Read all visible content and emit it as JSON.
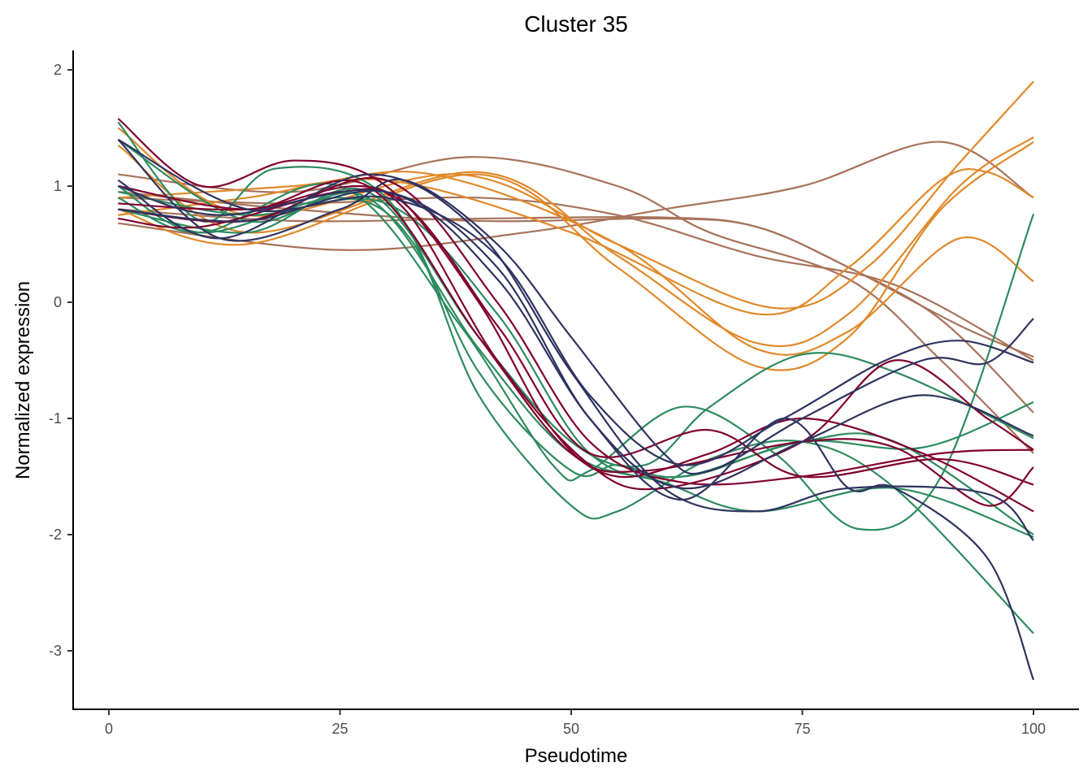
{
  "chart_data": {
    "type": "line",
    "title": "Cluster 35",
    "xlabel": "Pseudotime",
    "ylabel": "Normalized expression",
    "xlim": [
      -4,
      105
    ],
    "ylim": [
      -3.5,
      2.15
    ],
    "xticks": [
      0,
      25,
      50,
      75,
      100
    ],
    "xtick_labels": [
      "0",
      "25",
      "50",
      "75",
      "100"
    ],
    "yticks": [
      2,
      1,
      0,
      -1,
      -2,
      -3
    ],
    "ytick_labels": [
      "2",
      "1",
      "0",
      "-1",
      "-2",
      "-3"
    ],
    "grid": false,
    "legend": "none",
    "colors": {
      "orange": "#E0892A",
      "brown": "#A8725A",
      "green": "#2E8B5F",
      "red": "#80002E",
      "navy": "#2F3360"
    },
    "series": [
      {
        "group": "brown",
        "x": [
          1,
          25,
          45,
          60,
          75,
          90,
          100
        ],
        "y": [
          0.68,
          0.45,
          0.6,
          0.8,
          1.0,
          1.38,
          0.9
        ]
      },
      {
        "group": "brown",
        "x": [
          1,
          20,
          40,
          60,
          70,
          80,
          90,
          100
        ],
        "y": [
          0.8,
          0.7,
          0.72,
          0.73,
          0.65,
          0.3,
          -0.15,
          -0.95
        ]
      },
      {
        "group": "brown",
        "x": [
          1,
          20,
          39,
          55,
          65,
          80,
          90,
          100
        ],
        "y": [
          1.1,
          0.95,
          1.25,
          1.0,
          0.6,
          0.2,
          -0.5,
          -1.3
        ]
      },
      {
        "group": "brown",
        "x": [
          1,
          20,
          40,
          55,
          70,
          85,
          100
        ],
        "y": [
          0.9,
          0.85,
          0.9,
          0.75,
          0.4,
          0.15,
          -0.5
        ]
      },
      {
        "group": "brown",
        "x": [
          1,
          20,
          40,
          60,
          70,
          80,
          92,
          100
        ],
        "y": [
          0.95,
          0.8,
          0.7,
          0.72,
          0.65,
          0.3,
          -0.2,
          -0.47
        ]
      },
      {
        "group": "orange",
        "x": [
          1,
          15,
          38,
          55,
          72,
          82,
          92,
          100
        ],
        "y": [
          1.5,
          0.75,
          1.1,
          0.5,
          -0.05,
          0.3,
          1.2,
          1.9
        ]
      },
      {
        "group": "orange",
        "x": [
          1,
          15,
          40,
          55,
          70,
          80,
          92,
          100
        ],
        "y": [
          1.35,
          0.6,
          1.12,
          0.4,
          -0.35,
          -0.1,
          1.0,
          1.42
        ]
      },
      {
        "group": "orange",
        "x": [
          1,
          15,
          40,
          55,
          70,
          80,
          90,
          100
        ],
        "y": [
          0.8,
          0.5,
          1.1,
          0.3,
          -0.55,
          -0.3,
          0.8,
          1.38
        ]
      },
      {
        "group": "orange",
        "x": [
          1,
          15,
          30,
          50,
          70,
          80,
          90,
          95,
          100
        ],
        "y": [
          0.75,
          0.9,
          1.05,
          0.6,
          -0.1,
          0.3,
          1.05,
          1.12,
          0.9
        ]
      },
      {
        "group": "orange",
        "x": [
          1,
          20,
          35,
          55,
          70,
          80,
          92,
          100
        ],
        "y": [
          0.9,
          1.0,
          1.1,
          0.5,
          -0.4,
          -0.25,
          0.55,
          0.18
        ]
      },
      {
        "group": "green",
        "x": [
          1,
          10,
          18,
          30,
          40,
          50,
          55,
          62,
          75,
          85,
          100
        ],
        "y": [
          1.55,
          0.7,
          1.15,
          0.9,
          -0.6,
          -1.45,
          -1.4,
          -1.5,
          -1.2,
          -1.2,
          -2.0
        ]
      },
      {
        "group": "green",
        "x": [
          1,
          10,
          25,
          33,
          40,
          50,
          55,
          65,
          75,
          85,
          100
        ],
        "y": [
          1.0,
          0.6,
          0.9,
          0.5,
          -0.8,
          -1.75,
          -1.8,
          -1.35,
          -1.2,
          -1.6,
          -2.85
        ]
      },
      {
        "group": "green",
        "x": [
          1,
          10,
          25,
          38,
          48,
          52,
          62,
          72,
          81,
          90,
          100
        ],
        "y": [
          0.9,
          0.6,
          1.0,
          -0.2,
          -1.4,
          -1.45,
          -0.9,
          -1.3,
          -1.95,
          -1.5,
          0.76
        ]
      },
      {
        "group": "green",
        "x": [
          1,
          15,
          28,
          40,
          50,
          58,
          65,
          75,
          85,
          100
        ],
        "y": [
          0.8,
          0.6,
          0.95,
          -0.3,
          -1.2,
          -1.4,
          -0.9,
          -0.45,
          -0.6,
          -1.17
        ]
      },
      {
        "group": "green",
        "x": [
          1,
          15,
          28,
          40,
          50,
          60,
          70,
          85,
          100
        ],
        "y": [
          1.4,
          0.7,
          0.9,
          -0.4,
          -1.3,
          -1.55,
          -1.8,
          -1.6,
          -2.02
        ]
      },
      {
        "group": "green",
        "x": [
          1,
          15,
          30,
          42,
          52,
          62,
          75,
          88,
          100
        ],
        "y": [
          0.95,
          0.75,
          0.85,
          -0.1,
          -1.3,
          -1.5,
          -1.2,
          -1.25,
          -0.86
        ]
      },
      {
        "group": "red",
        "x": [
          1,
          10,
          20,
          30,
          40,
          48,
          55,
          65,
          75,
          88,
          100
        ],
        "y": [
          1.58,
          1.0,
          1.22,
          1.0,
          0.0,
          -1.1,
          -1.5,
          -1.3,
          -1.0,
          -1.3,
          -1.8
        ]
      },
      {
        "group": "red",
        "x": [
          1,
          10,
          25,
          32,
          42,
          52,
          60,
          75,
          85,
          95,
          100
        ],
        "y": [
          0.72,
          0.65,
          0.95,
          0.8,
          -0.5,
          -1.4,
          -1.6,
          -1.2,
          -0.5,
          -1.0,
          -1.27
        ]
      },
      {
        "group": "red",
        "x": [
          1,
          15,
          30,
          42,
          52,
          65,
          75,
          90,
          100
        ],
        "y": [
          0.85,
          0.8,
          0.95,
          -0.2,
          -1.3,
          -1.1,
          -1.5,
          -1.35,
          -1.57
        ]
      },
      {
        "group": "red",
        "x": [
          1,
          15,
          28,
          40,
          50,
          58,
          75,
          85,
          95,
          100
        ],
        "y": [
          1.0,
          0.8,
          1.0,
          -0.3,
          -1.3,
          -1.45,
          -1.2,
          -1.25,
          -1.75,
          -1.42
        ]
      },
      {
        "group": "red",
        "x": [
          1,
          15,
          30,
          42,
          52,
          62,
          75,
          90,
          100
        ],
        "y": [
          0.8,
          0.7,
          1.05,
          0.0,
          -1.2,
          -1.55,
          -1.5,
          -1.3,
          -1.27
        ]
      },
      {
        "group": "navy",
        "x": [
          1,
          12,
          25,
          32,
          42,
          50,
          60,
          65,
          75,
          88,
          95,
          100
        ],
        "y": [
          1.4,
          0.55,
          0.8,
          1.05,
          0.5,
          -0.3,
          -1.3,
          -1.45,
          -1.0,
          -0.5,
          -0.52,
          -0.14
        ]
      },
      {
        "group": "navy",
        "x": [
          1,
          12,
          28,
          40,
          50,
          60,
          70,
          80,
          95,
          100
        ],
        "y": [
          1.05,
          0.55,
          1.1,
          0.6,
          -0.6,
          -1.6,
          -1.8,
          -1.6,
          -1.65,
          -2.05
        ]
      },
      {
        "group": "navy",
        "x": [
          1,
          12,
          30,
          42,
          52,
          62,
          73,
          80,
          85,
          95,
          100
        ],
        "y": [
          1.0,
          0.75,
          0.95,
          0.2,
          -1.0,
          -1.7,
          -1.0,
          -1.6,
          -1.6,
          -2.2,
          -3.25
        ]
      },
      {
        "group": "navy",
        "x": [
          1,
          15,
          30,
          42,
          52,
          62,
          73,
          84,
          92,
          100
        ],
        "y": [
          1.4,
          0.8,
          0.9,
          0.4,
          -0.8,
          -1.4,
          -1.0,
          -0.5,
          -0.33,
          -0.52
        ]
      },
      {
        "group": "navy",
        "x": [
          1,
          15,
          30,
          42,
          52,
          62,
          75,
          88,
          100
        ],
        "y": [
          0.8,
          0.7,
          0.95,
          0.3,
          -1.0,
          -1.6,
          -1.2,
          -0.8,
          -1.15
        ]
      }
    ]
  }
}
